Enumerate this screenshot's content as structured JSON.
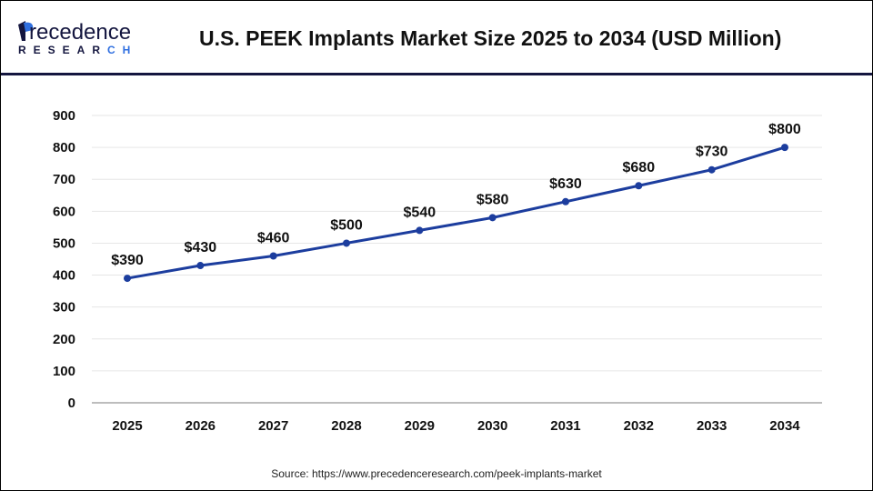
{
  "header": {
    "logo_text": "Precedence",
    "logo_subtext": "RESEARCH",
    "title": "U.S. PEEK Implants Market Size 2025 to 2034 (USD Million)"
  },
  "source": "Source: https://www.precedenceresearch.com/peek-implants-market",
  "colors": {
    "line": "#1c3d9e",
    "header_rule": "#14163f",
    "grid": "#e6e6e6",
    "axis": "#bdbdbd"
  },
  "chart_data": {
    "type": "line",
    "title": "U.S. PEEK Implants Market Size 2025 to 2034 (USD Million)",
    "categories": [
      "2025",
      "2026",
      "2027",
      "2028",
      "2029",
      "2030",
      "2031",
      "2032",
      "2033",
      "2034"
    ],
    "values": [
      390,
      430,
      460,
      500,
      540,
      580,
      630,
      680,
      730,
      800
    ],
    "data_labels": [
      "$390",
      "$430",
      "$460",
      "$500",
      "$540",
      "$580",
      "$630",
      "$680",
      "$730",
      "$800"
    ],
    "ylim": [
      0,
      900
    ],
    "yticks": [
      0,
      100,
      200,
      300,
      400,
      500,
      600,
      700,
      800,
      900
    ],
    "grid": true,
    "legend": "none"
  }
}
